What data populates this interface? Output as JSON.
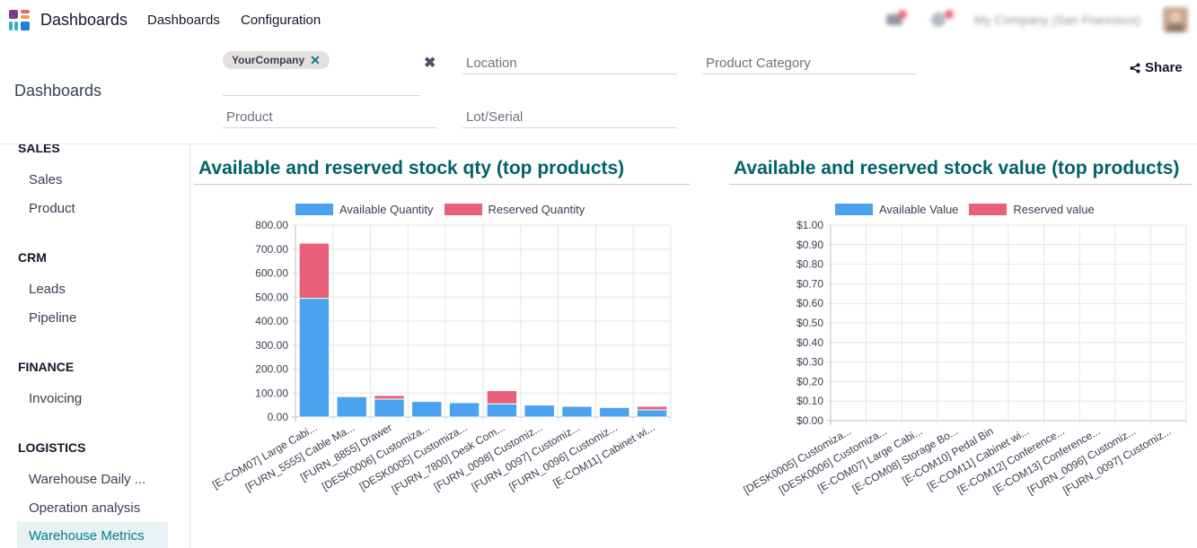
{
  "topbar": {
    "app_title": "Dashboards",
    "nav": [
      "Dashboards",
      "Configuration"
    ],
    "company": "My Company (San Francisco)"
  },
  "filters": {
    "title": "Dashboards",
    "company_tag": "YourCompany",
    "location_placeholder": "Location",
    "product_category_placeholder": "Product Category",
    "product_placeholder": "Product",
    "lot_serial_placeholder": "Lot/Serial",
    "share_label": "Share"
  },
  "sidebar": {
    "sections": [
      {
        "title": "SALES",
        "items": [
          "Sales",
          "Product"
        ]
      },
      {
        "title": "CRM",
        "items": [
          "Leads",
          "Pipeline"
        ]
      },
      {
        "title": "FINANCE",
        "items": [
          "Invoicing"
        ]
      },
      {
        "title": "LOGISTICS",
        "items": [
          "Warehouse Daily ...",
          "Operation analysis",
          "Warehouse Metrics"
        ]
      }
    ],
    "active_item": "Warehouse Metrics"
  },
  "colors": {
    "available": "#4ba3ef",
    "reserved": "#e8607a",
    "title": "#016369"
  },
  "chart_data": [
    {
      "type": "bar",
      "stacked": true,
      "title": "Available and reserved stock qty (top products)",
      "categories": [
        "[E-COM07] Large Cabi...",
        "[FURN_5555] Cable Ma...",
        "[FURN_8855] Drawer",
        "[DESK0006] Customiza...",
        "[DESK0005] Customiza...",
        "[FURN_7800] Desk Com...",
        "[FURN_0098] Customiz...",
        "[FURN_0097] Customiz...",
        "[FURN_0096] Customiz...",
        "[E-COM11] Cabinet wi..."
      ],
      "series": [
        {
          "name": "Available Quantity",
          "values": [
            495,
            85,
            75,
            65,
            60,
            55,
            50,
            45,
            40,
            30
          ]
        },
        {
          "name": "Reserved Quantity",
          "values": [
            230,
            0,
            15,
            0,
            0,
            55,
            0,
            0,
            0,
            15
          ]
        }
      ],
      "yticks": [
        "0.00",
        "100.00",
        "200.00",
        "300.00",
        "400.00",
        "500.00",
        "600.00",
        "700.00",
        "800.00"
      ],
      "ylim": [
        0,
        800
      ],
      "legend": "top"
    },
    {
      "type": "bar",
      "stacked": true,
      "title": "Available and reserved stock value (top products)",
      "categories": [
        "[DESK0005] Customiza...",
        "[DESK0006] Customiza...",
        "[E-COM07] Large Cabi...",
        "[E-COM08] Storage Bo...",
        "[E-COM10] Pedal Bin",
        "[E-COM11] Cabinet wi...",
        "[E-COM12] Conference...",
        "[E-COM13] Conference...",
        "[FURN_0096] Customiz...",
        "[FURN_0097] Customiz..."
      ],
      "series": [
        {
          "name": "Available Value",
          "values": [
            0,
            0,
            0,
            0,
            0,
            0,
            0,
            0,
            0,
            0
          ]
        },
        {
          "name": "Reserved value",
          "values": [
            0,
            0,
            0,
            0,
            0,
            0,
            0,
            0,
            0,
            0
          ]
        }
      ],
      "yticks": [
        "$0.00",
        "$0.10",
        "$0.20",
        "$0.30",
        "$0.40",
        "$0.50",
        "$0.60",
        "$0.70",
        "$0.80",
        "$0.90",
        "$1.00"
      ],
      "ylim": [
        0,
        1
      ],
      "legend": "top"
    }
  ]
}
